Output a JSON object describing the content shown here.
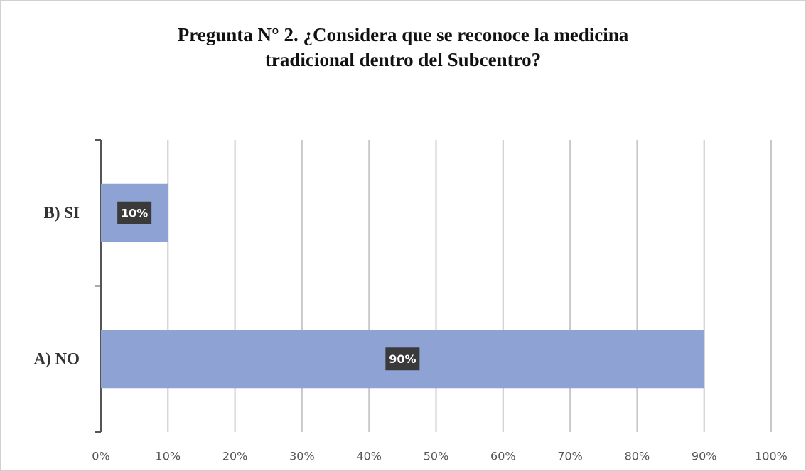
{
  "chart_data": {
    "type": "hbar",
    "title": [
      "Pregunta N° 2. ¿Considera que se reconoce la medicina",
      "tradicional dentro del Subcentro?"
    ],
    "categories": [
      "B) SI",
      "A) NO"
    ],
    "values": [
      10,
      90
    ],
    "value_labels": [
      "10%",
      "90%"
    ],
    "color": "#8fa2d4",
    "xlim": [
      0,
      100
    ],
    "xticks": [
      {
        "value": 0,
        "label": "0%"
      },
      {
        "value": 10,
        "label": "10%"
      },
      {
        "value": 20,
        "label": "20%"
      },
      {
        "value": 30,
        "label": "30%"
      },
      {
        "value": 40,
        "label": "40%"
      },
      {
        "value": 50,
        "label": "50%"
      },
      {
        "value": 60,
        "label": "60%"
      },
      {
        "value": 70,
        "label": "70%"
      },
      {
        "value": 80,
        "label": "80%"
      },
      {
        "value": 90,
        "label": "90%"
      },
      {
        "value": 100,
        "label": "100%"
      }
    ],
    "grid": true
  }
}
